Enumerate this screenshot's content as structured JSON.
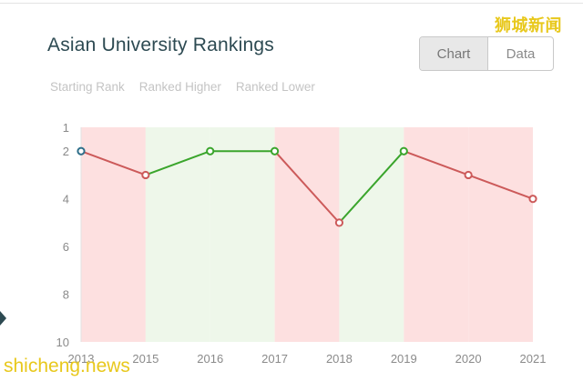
{
  "header": {
    "title": "Asian University Rankings"
  },
  "view_toggle": {
    "chart_label": "Chart",
    "data_label": "Data",
    "selected": "Chart"
  },
  "legend": {
    "starting_rank": "Starting Rank",
    "ranked_higher": "Ranked Higher",
    "ranked_lower": "Ranked Lower"
  },
  "watermarks": {
    "top_right": "狮城新闻",
    "bottom_left": "shicheng.news"
  },
  "colors": {
    "higher_line": "#3aa52c",
    "lower_line": "#cc5a5a",
    "higher_fill": "#eef7ea",
    "lower_fill": "#fde0e0",
    "start_marker": "#2f6f8a",
    "title": "#2d4a52"
  },
  "chart_data": {
    "type": "line",
    "title": "Asian University Rankings",
    "categories": [
      "2013",
      "2015",
      "2016",
      "2017",
      "2018",
      "2019",
      "2020",
      "2021"
    ],
    "series": [
      {
        "values": [
          2,
          3,
          2,
          2,
          5,
          2,
          3,
          4
        ]
      }
    ],
    "ylim": [
      1,
      10
    ],
    "y_inverted": true,
    "y_ticks": [
      1,
      2,
      4,
      6,
      8,
      10
    ],
    "grid": false,
    "legend_position": "top-left"
  }
}
